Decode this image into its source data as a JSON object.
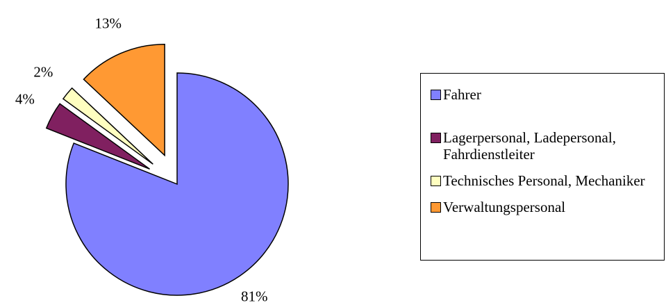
{
  "chart_data": {
    "type": "pie",
    "categories": [
      "Fahrer",
      "Lagerpersonal, Ladepersonal, Fahrdienstleiter",
      "Technisches Personal, Mechaniker",
      "Verwaltungspersonal"
    ],
    "values": [
      81,
      4,
      2,
      13
    ],
    "value_labels": [
      "81%",
      "4%",
      "2%",
      "13%"
    ],
    "colors": [
      "#8080ff",
      "#802060",
      "#ffffc0",
      "#ff9933"
    ],
    "legend": "right"
  }
}
